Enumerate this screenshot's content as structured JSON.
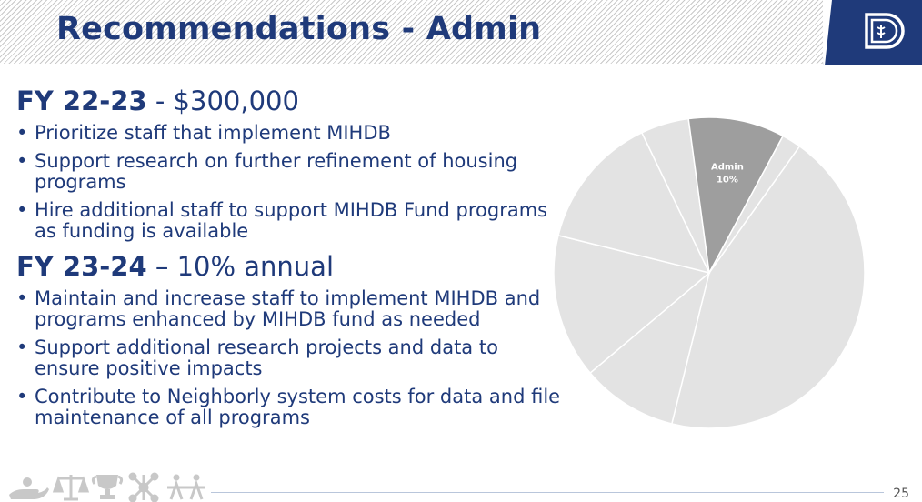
{
  "title": "Recommendations - Admin",
  "sections": [
    {
      "heading_bold": "FY 22-23",
      "heading_rest": " - $300,000",
      "bullets": [
        "Prioritize staff that implement MIHDB",
        "Support research on further refinement of housing programs",
        "Hire additional staff to support MIHDB Fund programs as funding is available"
      ]
    },
    {
      "heading_bold": "FY 23-24",
      "heading_rest": " – 10% annual",
      "bullets": [
        "Maintain and increase staff to implement MIHDB and programs enhanced by MIHDB fund as needed",
        "Support additional research projects and data to ensure positive impacts",
        "Contribute to Neighborly system costs for data and file maintenance of all programs"
      ]
    }
  ],
  "chart_data": {
    "type": "pie",
    "highlight_label": "Admin",
    "highlight_value_label": "10%",
    "slices": [
      {
        "label": "",
        "value": 44,
        "color": "#e3e3e3"
      },
      {
        "label": "",
        "value": 10,
        "color": "#e3e3e3"
      },
      {
        "label": "",
        "value": 15,
        "color": "#e3e3e3"
      },
      {
        "label": "",
        "value": 14,
        "color": "#e3e3e3"
      },
      {
        "label": "",
        "value": 5,
        "color": "#e3e3e3"
      },
      {
        "label": "Admin",
        "value": 10,
        "color": "#9e9e9e"
      },
      {
        "label": "",
        "value": 2,
        "color": "#e3e3e3"
      }
    ],
    "highlight_color": "#9e9e9e",
    "base_color": "#e3e3e3"
  },
  "footer": {
    "page_number": "25",
    "icons": [
      "hand-icon",
      "scales-icon",
      "trophy-icon",
      "network-icon",
      "people-icon"
    ]
  },
  "colors": {
    "title": "#1f3a7a",
    "text": "#1f3a7a",
    "logo_bg": "#1f3a7a"
  },
  "logo": {
    "icon": "logo-icon"
  }
}
